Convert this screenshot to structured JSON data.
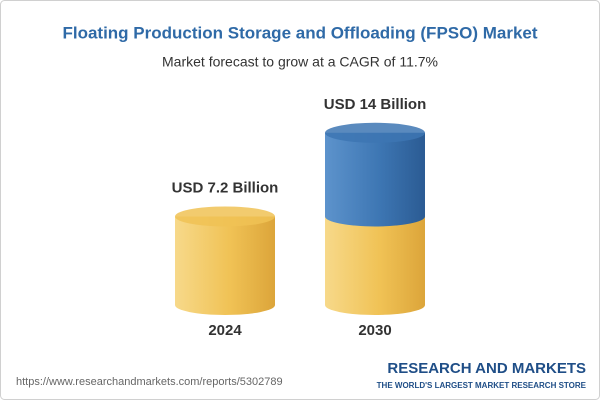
{
  "chart_data": {
    "type": "cylinder",
    "title": "Floating Production Storage and Offloading (FPSO) Market",
    "subtitle": "Market forecast to grow at a CAGR of 11.7%",
    "categories": [
      "2024",
      "2030"
    ],
    "values": [
      7.2,
      14
    ],
    "value_labels": [
      "USD 7.2 Billion",
      "USD 14 Billion"
    ],
    "colors": [
      "#f0c255",
      "#3d76b3"
    ]
  },
  "footer": {
    "url": "https://www.researchandmarkets.com/reports/5302789",
    "brand": "RESEARCH AND MARKETS",
    "tagline": "THE WORLD'S LARGEST MARKET RESEARCH STORE"
  }
}
